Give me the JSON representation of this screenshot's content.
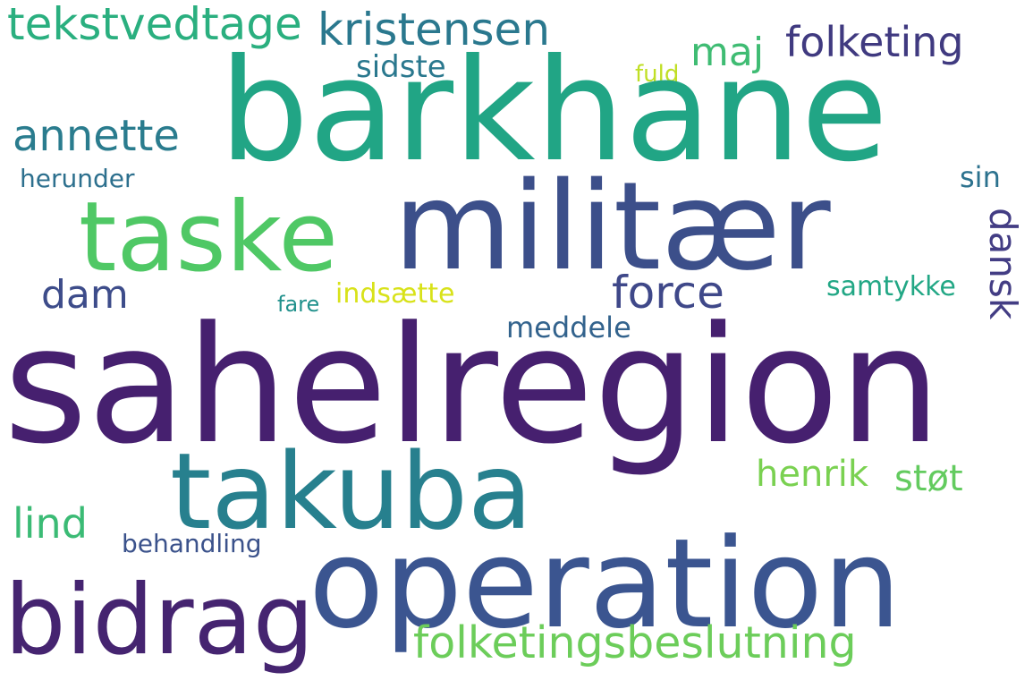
{
  "words": {
    "sahelregion": {
      "text": "sahelregion",
      "color": "#46206f"
    },
    "barkhane": {
      "text": "barkhane",
      "color": "#21a585"
    },
    "militaer": {
      "text": "militær",
      "color": "#3c4f8a"
    },
    "operation": {
      "text": "operation",
      "color": "#3b5590"
    },
    "takuba": {
      "text": "takuba",
      "color": "#27808e"
    },
    "taske": {
      "text": "taske",
      "color": "#4fc865"
    },
    "bidrag": {
      "text": "bidrag",
      "color": "#452470"
    },
    "folketingsbeslutning": {
      "text": "folketingsbeslutning",
      "color": "#6ccd5a"
    },
    "tekstvedtage": {
      "text": "tekstvedtage",
      "color": "#2aaf7f"
    },
    "kristensen": {
      "text": "kristensen",
      "color": "#2a788e"
    },
    "folketing": {
      "text": "folketing",
      "color": "#403a80"
    },
    "annette": {
      "text": "annette",
      "color": "#2a7c8e"
    },
    "force": {
      "text": "force",
      "color": "#3f4889"
    },
    "dam": {
      "text": "dam",
      "color": "#3d4c8a"
    },
    "dansk": {
      "text": "dansk",
      "color": "#433d84"
    },
    "maj": {
      "text": "maj",
      "color": "#3fbc73"
    },
    "sidste": {
      "text": "sidste",
      "color": "#2a788e"
    },
    "lind": {
      "text": "lind",
      "color": "#3bbb75"
    },
    "henrik": {
      "text": "henrik",
      "color": "#7ad151"
    },
    "stoet": {
      "text": "støt",
      "color": "#63cb5f"
    },
    "samtykke": {
      "text": "samtykke",
      "color": "#22a785"
    },
    "meddele": {
      "text": "meddele",
      "color": "#33638d"
    },
    "sin": {
      "text": "sin",
      "color": "#2c728e"
    },
    "herunder": {
      "text": "herunder",
      "color": "#2d708e"
    },
    "behandling": {
      "text": "behandling",
      "color": "#3b528b"
    },
    "indsaette": {
      "text": "indsætte",
      "color": "#d8e219"
    },
    "fuld": {
      "text": "fuld",
      "color": "#c0df25"
    },
    "fare": {
      "text": "fare",
      "color": "#21918c"
    }
  }
}
